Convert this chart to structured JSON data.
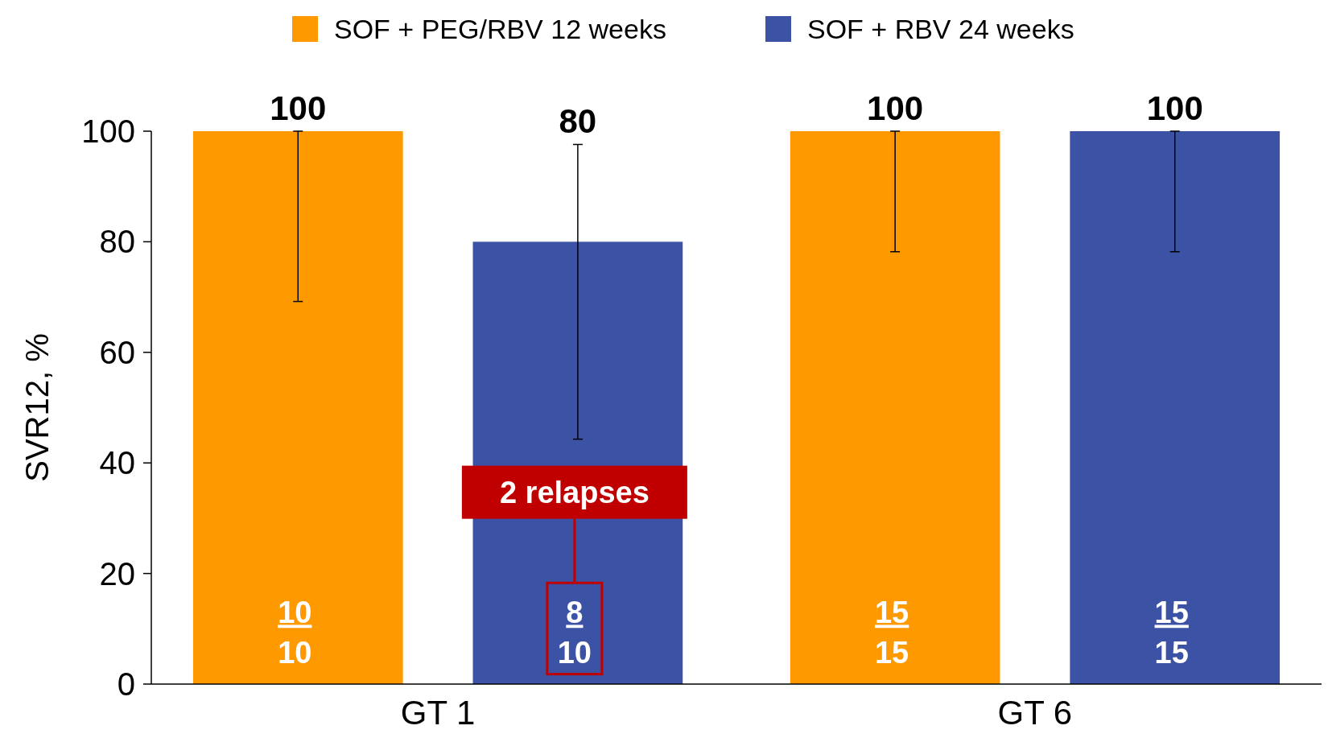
{
  "chart_data": {
    "type": "bar",
    "ylabel": "SVR12, %",
    "categories": [
      "GT 1",
      "GT 6"
    ],
    "series": [
      {
        "name": "SOF + PEG/RBV 12 weeks",
        "color": "#ff9900",
        "values": [
          100,
          100
        ],
        "errors": [
          [
            69.2,
            100
          ],
          [
            78.2,
            100
          ]
        ]
      },
      {
        "name": "SOF + RBV 24 weeks",
        "color": "#3c52a5",
        "values": [
          80,
          100
        ],
        "errors": [
          [
            44.3,
            97.6
          ],
          [
            78.2,
            100
          ]
        ]
      }
    ],
    "ylim": [
      0,
      100
    ],
    "yticks": [
      0,
      20,
      40,
      60,
      80,
      100
    ],
    "grid": false,
    "legend": "top",
    "data_labels": true,
    "annotations": [
      "10",
      "10",
      "8",
      "10",
      "15",
      "15",
      "15",
      "15",
      "2 relapses"
    ]
  }
}
